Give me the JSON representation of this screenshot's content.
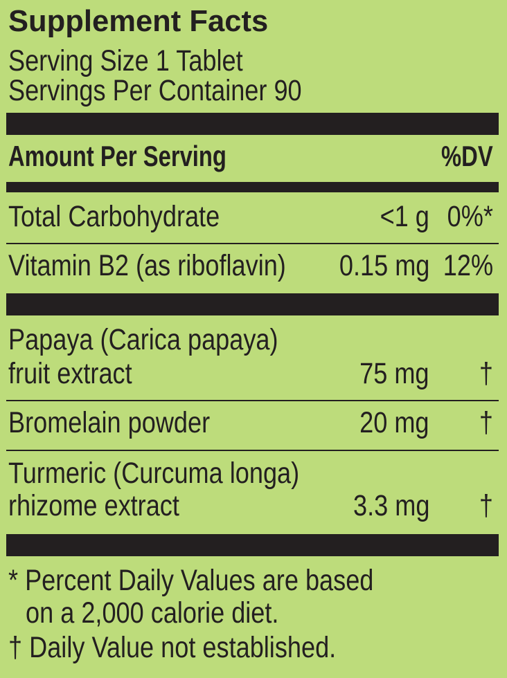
{
  "title": "Supplement Facts",
  "serving_size": "Serving Size 1 Tablet",
  "servings_per_container": "Servings Per Container 90",
  "header": {
    "amount_label": "Amount Per Serving",
    "dv_label": "%DV"
  },
  "nutrients": [
    {
      "name": "Total Carbohydrate",
      "amount": "<1 g",
      "dv": "0%*"
    },
    {
      "name": "Vitamin B2 (as riboflavin)",
      "amount": "0.15 mg",
      "dv": "12%"
    }
  ],
  "ingredients": [
    {
      "name_line1": "Papaya (Carica papaya)",
      "name_line2": "fruit extract",
      "amount": "75 mg",
      "dv": "†"
    },
    {
      "name_line1": "Bromelain powder",
      "amount": "20 mg",
      "dv": "†"
    },
    {
      "name_line1": "Turmeric (Curcuma longa)",
      "name_line2": "rhizome extract",
      "amount": "3.3 mg",
      "dv": "†"
    }
  ],
  "footnotes": {
    "line1": "* Percent Daily Values are based",
    "line2": "on a 2,000 calorie diet.",
    "line3": "† Daily Value not established."
  },
  "colors": {
    "background": "#bddc7b",
    "ink": "#231f20"
  }
}
